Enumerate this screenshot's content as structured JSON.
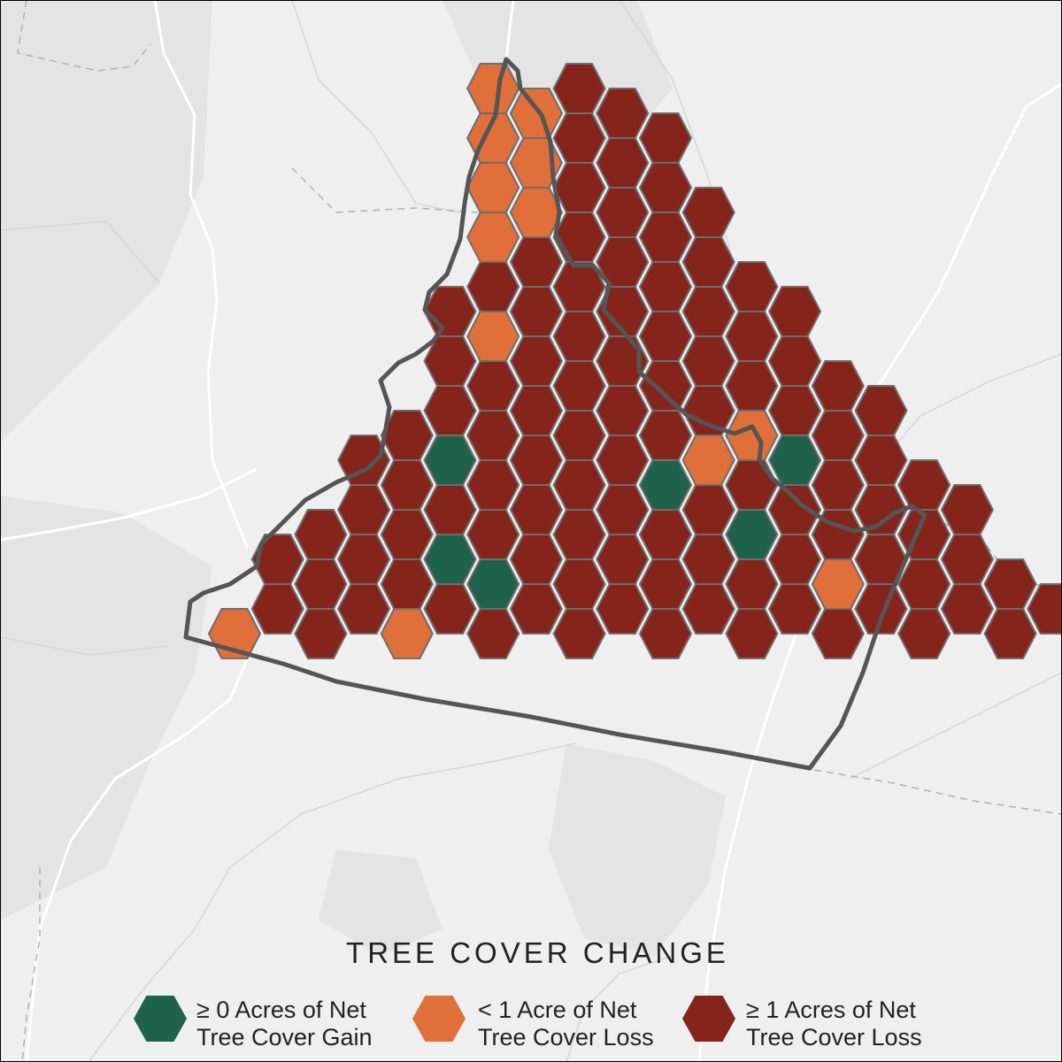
{
  "legend": {
    "title": "TREE COVER CHANGE",
    "items": [
      {
        "key": "gain",
        "line1": "≥ 0 Acres of Net",
        "line2": "Tree Cover Gain",
        "color": "#1f624c"
      },
      {
        "key": "small_loss",
        "line1": "< 1 Acre of Net",
        "line2": "Tree Cover Loss",
        "color": "#e06f3a"
      },
      {
        "key": "large_loss",
        "line1": "≥ 1 Acres of Net",
        "line2": "Tree Cover Loss",
        "color": "#85241b"
      }
    ]
  },
  "colors": {
    "gain": "#1f624c",
    "small_loss": "#e06f3a",
    "large_loss": "#85241b",
    "hex_stroke": "#6e6e6e",
    "boundary": "#555555",
    "background": "#efefef"
  }
}
